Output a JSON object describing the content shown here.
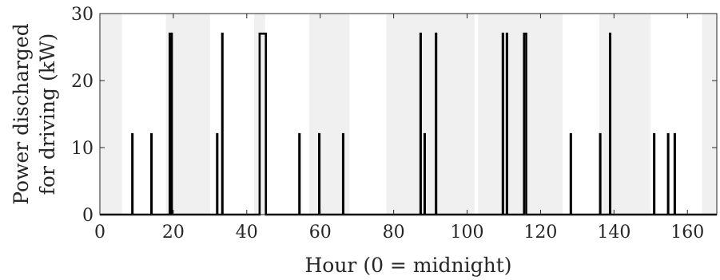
{
  "chart_data": {
    "type": "line",
    "title": "",
    "xlabel": "Hour (0 = midnight)",
    "ylabel_lines": [
      "Power discharged",
      "for driving (kW)"
    ],
    "xlim": [
      0,
      168
    ],
    "ylim": [
      0,
      30
    ],
    "xticks": [
      0,
      20,
      40,
      60,
      80,
      100,
      120,
      140,
      160
    ],
    "yticks": [
      0,
      10,
      20,
      30
    ],
    "grid": false,
    "shaded_intervals_hours": [
      [
        0,
        6
      ],
      [
        18,
        30
      ],
      [
        42,
        45
      ],
      [
        57,
        68
      ],
      [
        78,
        102
      ],
      [
        103,
        126
      ],
      [
        136,
        150
      ],
      [
        164,
        168
      ]
    ],
    "shading_color": "#f0f0f0",
    "line_color": "#000000",
    "series": [
      {
        "pulses": [
          {
            "start": 8.8,
            "end": 8.9,
            "value": 12
          },
          {
            "start": 14.0,
            "end": 14.1,
            "value": 12
          },
          {
            "start": 19.0,
            "end": 19.1,
            "value": 27
          },
          {
            "start": 19.5,
            "end": 19.6,
            "value": 27
          },
          {
            "start": 31.9,
            "end": 32.0,
            "value": 12
          },
          {
            "start": 33.3,
            "end": 33.4,
            "value": 27
          },
          {
            "start": 43.5,
            "end": 45.2,
            "value": 27
          },
          {
            "start": 54.3,
            "end": 54.4,
            "value": 12
          },
          {
            "start": 59.7,
            "end": 59.8,
            "value": 12
          },
          {
            "start": 66.2,
            "end": 66.3,
            "value": 12
          },
          {
            "start": 87.3,
            "end": 87.4,
            "value": 27
          },
          {
            "start": 88.4,
            "end": 88.5,
            "value": 12
          },
          {
            "start": 91.5,
            "end": 91.6,
            "value": 27
          },
          {
            "start": 109.7,
            "end": 109.8,
            "value": 27
          },
          {
            "start": 110.8,
            "end": 110.9,
            "value": 27
          },
          {
            "start": 115.5,
            "end": 116.1,
            "value": 27
          },
          {
            "start": 128.2,
            "end": 128.3,
            "value": 12
          },
          {
            "start": 136.2,
            "end": 136.3,
            "value": 12
          },
          {
            "start": 138.9,
            "end": 139.0,
            "value": 27
          },
          {
            "start": 150.9,
            "end": 151.0,
            "value": 12
          },
          {
            "start": 154.7,
            "end": 154.8,
            "value": 12
          },
          {
            "start": 156.5,
            "end": 156.6,
            "value": 12
          }
        ]
      }
    ]
  }
}
